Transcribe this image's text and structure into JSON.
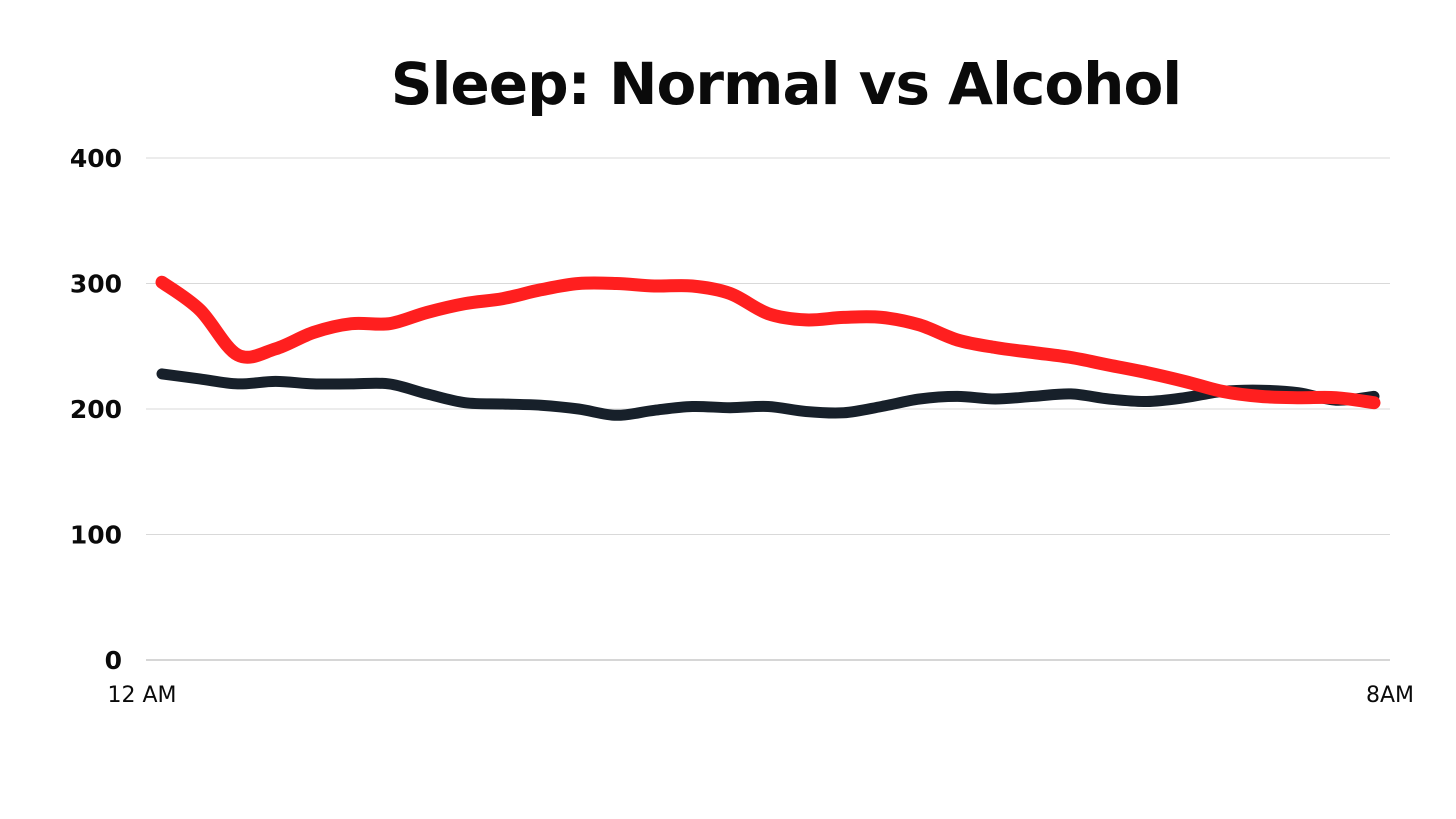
{
  "chart_data": {
    "type": "line",
    "title": "Sleep: Normal  vs Alcohol",
    "xlabel": "",
    "ylabel": "",
    "x_tick_labels": [
      "12 AM",
      "8AM"
    ],
    "y_tick_labels": [
      "400",
      "300",
      "200",
      "100",
      "0"
    ],
    "xlim": [
      0,
      8
    ],
    "ylim": [
      0,
      400
    ],
    "y_ticks": [
      400,
      300,
      200,
      100,
      0
    ],
    "grid": true,
    "legend": "none",
    "x": [
      0,
      0.25,
      0.5,
      0.75,
      1,
      1.25,
      1.5,
      1.75,
      2,
      2.25,
      2.5,
      2.75,
      3,
      3.25,
      3.5,
      3.75,
      4,
      4.25,
      4.5,
      4.75,
      5,
      5.25,
      5.5,
      5.75,
      6,
      6.25,
      6.5,
      6.75,
      7,
      7.25,
      7.5,
      7.75,
      8
    ],
    "series": [
      {
        "color": "#ff1f1f",
        "values": [
          301,
          279,
          243,
          248,
          261,
          268,
          268,
          277,
          284,
          288,
          295,
          300,
          300,
          298,
          298,
          292,
          276,
          271,
          273,
          273,
          267,
          255,
          249,
          245,
          241,
          235,
          229,
          222,
          214,
          210,
          209,
          209,
          205
        ]
      },
      {
        "color": "#17202a",
        "values": [
          228,
          224,
          220,
          222,
          220,
          220,
          220,
          212,
          205,
          204,
          203,
          200,
          195,
          199,
          202,
          201,
          202,
          198,
          197,
          202,
          208,
          210,
          208,
          210,
          212,
          208,
          206,
          209,
          214,
          215,
          213,
          207,
          210
        ]
      }
    ]
  }
}
